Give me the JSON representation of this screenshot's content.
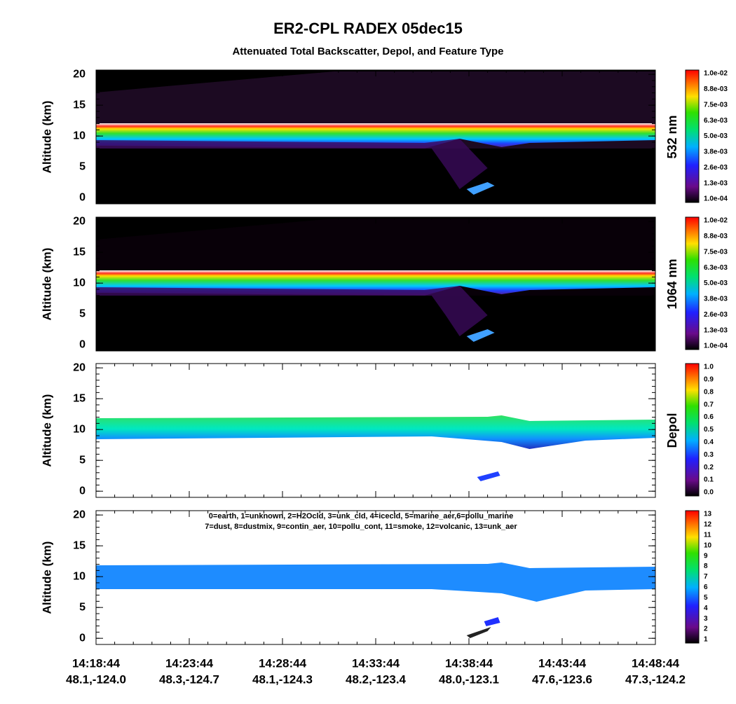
{
  "chart_data": {
    "type": "curtain",
    "title": "ER2-CPL RADEX 05dec15",
    "subtitle": "Attenuated Total Backscatter, Depol, and Feature Type",
    "xlim": [
      0,
      30
    ],
    "xticks": [
      {
        "value": 0,
        "label": "14:18:44"
      },
      {
        "value": 5,
        "label": "14:23:44"
      },
      {
        "value": 10,
        "label": "14:28:44"
      },
      {
        "value": 15,
        "label": "14:33:44"
      },
      {
        "value": 20,
        "label": "14:38:44"
      },
      {
        "value": 25,
        "label": "14:43:44"
      },
      {
        "value": 30,
        "label": "14:48:44"
      }
    ],
    "xtick_sublabels": [
      "48.1,-124.0",
      "48.3,-124.7",
      "48.1,-124.3",
      "48.2,-123.4",
      "48.0,-123.1",
      "47.6,-123.6",
      "47.3,-124.2"
    ],
    "legend_text": [
      "0=earth, 1=unknown, 2=H2Ocld, 3=unk_cld, 4=icecld, 5=marine_aer,6=pollu_marine",
      "7=dust, 8=dustmix, 9=contin_aer, 10=pollu_cont, 11=smoke, 12=volcanic, 13=unk_aer"
    ],
    "panels": [
      {
        "ylabel": "Altitude (km)",
        "side_label": "532 nm",
        "ylim": [
          -1,
          20.7
        ],
        "yticks": [
          0,
          5,
          10,
          15,
          20
        ],
        "colorbar_labels": [
          "1.0e-02",
          "8.8e-03",
          "7.5e-03",
          "6.3e-03",
          "5.0e-03",
          "3.8e-03",
          "2.6e-03",
          "1.3e-03",
          "1.0e-04"
        ]
      },
      {
        "ylabel": "Altitude (km)",
        "side_label": "1064 nm",
        "ylim": [
          -1,
          20.7
        ],
        "yticks": [
          0,
          5,
          10,
          15,
          20
        ],
        "colorbar_labels": [
          "1.0e-02",
          "8.8e-03",
          "7.5e-03",
          "6.3e-03",
          "5.0e-03",
          "3.8e-03",
          "2.6e-03",
          "1.3e-03",
          "1.0e-04"
        ]
      },
      {
        "ylabel": "Altitude (km)",
        "side_label": "Depol",
        "ylim": [
          -1,
          20.7
        ],
        "yticks": [
          0,
          5,
          10,
          15,
          20
        ],
        "colorbar_labels": [
          "1.0",
          "0.9",
          "0.8",
          "0.7",
          "0.6",
          "0.5",
          "0.4",
          "0.3",
          "0.2",
          "0.1",
          "0.0"
        ]
      },
      {
        "ylabel": "Altitude (km)",
        "ylim": [
          -1,
          20.7
        ],
        "yticks": [
          0,
          5,
          10,
          15,
          20
        ],
        "colorbar_labels": [
          13,
          12,
          11,
          10,
          9,
          8,
          7,
          6,
          5,
          4,
          3,
          2,
          1
        ]
      }
    ]
  }
}
